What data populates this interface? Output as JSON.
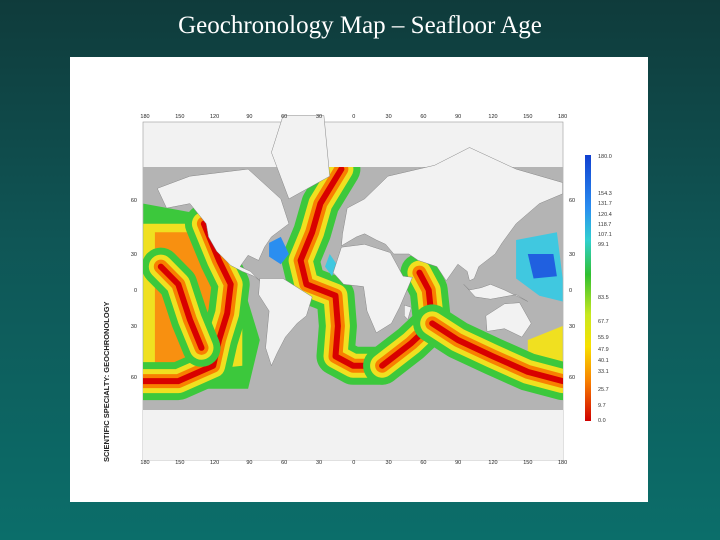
{
  "title": "Geochronology Map – Seafloor Age",
  "map": {
    "heading": "SCIENTIFIC SPECIALTY: GEOCHRONOLOGY",
    "lon_labels_top": [
      "180",
      "150",
      "120",
      "90",
      "60",
      "30",
      "0",
      "30",
      "60",
      "90",
      "120",
      "150",
      "180"
    ],
    "lon_labels_bottom": [
      "180",
      "150",
      "120",
      "90",
      "60",
      "30",
      "0",
      "30",
      "60",
      "90",
      "120",
      "150",
      "180"
    ],
    "lat_labels_left": [
      "60",
      "30",
      "0",
      "30",
      "60"
    ],
    "lat_labels_right": [
      "60",
      "30",
      "0",
      "30",
      "60"
    ],
    "legend_labels": [
      "180.0",
      "154.3",
      "131.7",
      "120.4",
      "118.7",
      "107.1",
      "99.1",
      "83.5",
      "67.7",
      "55.9",
      "47.9",
      "40.1",
      "33.1",
      "25.7",
      "9.7",
      "0.0"
    ]
  }
}
